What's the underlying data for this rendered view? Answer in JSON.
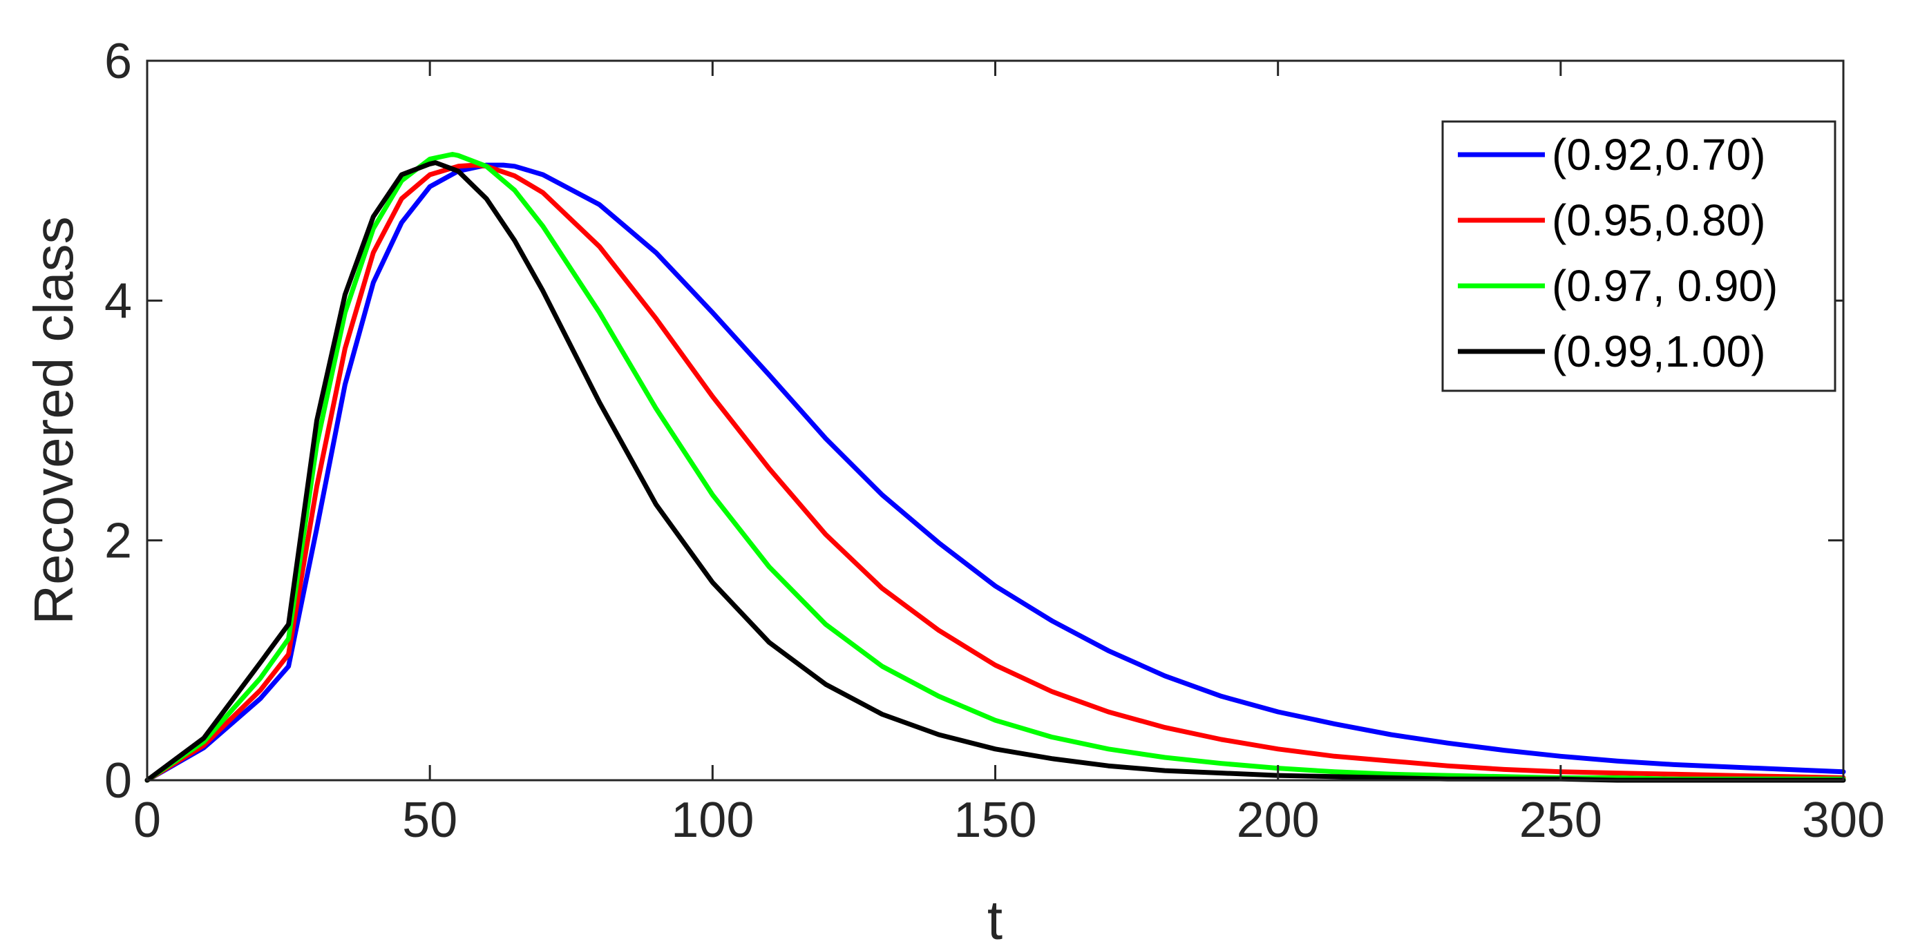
{
  "chart_data": {
    "type": "line",
    "xlabel": "t",
    "ylabel": "Recovered class",
    "xlim": [
      0,
      300
    ],
    "ylim": [
      0,
      6
    ],
    "xticks": [
      0,
      50,
      100,
      150,
      200,
      250,
      300
    ],
    "yticks": [
      0,
      2,
      4,
      6
    ],
    "xtick_labels": [
      "0",
      "50",
      "100",
      "150",
      "200",
      "250",
      "300"
    ],
    "ytick_labels": [
      "0",
      "2",
      "4",
      "6"
    ],
    "grid": false,
    "legend_position": "top-right",
    "series": [
      {
        "name": "(0.92,0.70)",
        "color": "#0000ff",
        "x": [
          0,
          10,
          20,
          25,
          30,
          35,
          40,
          45,
          50,
          55,
          60,
          63,
          65,
          70,
          80,
          90,
          100,
          110,
          120,
          130,
          140,
          150,
          160,
          170,
          180,
          190,
          200,
          210,
          220,
          230,
          240,
          250,
          260,
          270,
          280,
          290,
          300
        ],
        "y": [
          0,
          0.27,
          0.68,
          0.95,
          2.1,
          3.3,
          4.15,
          4.65,
          4.95,
          5.08,
          5.13,
          5.13,
          5.12,
          5.05,
          4.8,
          4.4,
          3.9,
          3.38,
          2.85,
          2.38,
          1.98,
          1.62,
          1.33,
          1.08,
          0.87,
          0.7,
          0.57,
          0.47,
          0.38,
          0.31,
          0.25,
          0.2,
          0.16,
          0.13,
          0.11,
          0.09,
          0.07
        ]
      },
      {
        "name": "(0.95,0.80)",
        "color": "#ff0000",
        "x": [
          0,
          10,
          20,
          25,
          30,
          35,
          40,
          45,
          50,
          55,
          58,
          60,
          65,
          70,
          80,
          90,
          100,
          110,
          120,
          130,
          140,
          150,
          160,
          170,
          180,
          190,
          200,
          210,
          220,
          230,
          240,
          250,
          260,
          270,
          280,
          290,
          300
        ],
        "y": [
          0,
          0.29,
          0.75,
          1.05,
          2.45,
          3.6,
          4.4,
          4.85,
          5.05,
          5.12,
          5.13,
          5.12,
          5.04,
          4.9,
          4.45,
          3.85,
          3.2,
          2.6,
          2.05,
          1.6,
          1.25,
          0.96,
          0.74,
          0.57,
          0.44,
          0.34,
          0.26,
          0.2,
          0.16,
          0.12,
          0.09,
          0.07,
          0.06,
          0.05,
          0.04,
          0.03,
          0.02
        ]
      },
      {
        "name": "(0.97, 0.90)",
        "color": "#00ff00",
        "x": [
          0,
          10,
          20,
          25,
          30,
          35,
          40,
          45,
          50,
          54,
          55,
          60,
          65,
          70,
          80,
          90,
          100,
          110,
          120,
          130,
          140,
          150,
          160,
          170,
          180,
          190,
          200,
          210,
          220,
          230,
          240,
          250,
          260,
          270,
          280,
          290,
          300
        ],
        "y": [
          0,
          0.32,
          0.85,
          1.18,
          2.8,
          3.9,
          4.6,
          5.0,
          5.18,
          5.22,
          5.21,
          5.12,
          4.92,
          4.62,
          3.9,
          3.1,
          2.38,
          1.78,
          1.3,
          0.95,
          0.7,
          0.5,
          0.36,
          0.26,
          0.19,
          0.14,
          0.1,
          0.07,
          0.05,
          0.04,
          0.03,
          0.02,
          0.02,
          0.01,
          0.01,
          0.01,
          0.01
        ]
      },
      {
        "name": "(0.99,1.00)",
        "color": "#000000",
        "x": [
          0,
          10,
          20,
          25,
          30,
          35,
          40,
          45,
          50,
          51,
          55,
          60,
          65,
          70,
          80,
          90,
          100,
          110,
          120,
          130,
          140,
          150,
          160,
          170,
          180,
          190,
          200,
          210,
          220,
          230,
          240,
          250,
          260,
          270,
          280,
          290,
          300
        ],
        "y": [
          0,
          0.35,
          0.98,
          1.3,
          3.0,
          4.05,
          4.7,
          5.05,
          5.14,
          5.15,
          5.08,
          4.85,
          4.5,
          4.08,
          3.15,
          2.3,
          1.65,
          1.15,
          0.8,
          0.55,
          0.38,
          0.26,
          0.18,
          0.12,
          0.08,
          0.06,
          0.04,
          0.03,
          0.02,
          0.01,
          0.01,
          0.01,
          0,
          0,
          0,
          0,
          0
        ]
      }
    ]
  }
}
